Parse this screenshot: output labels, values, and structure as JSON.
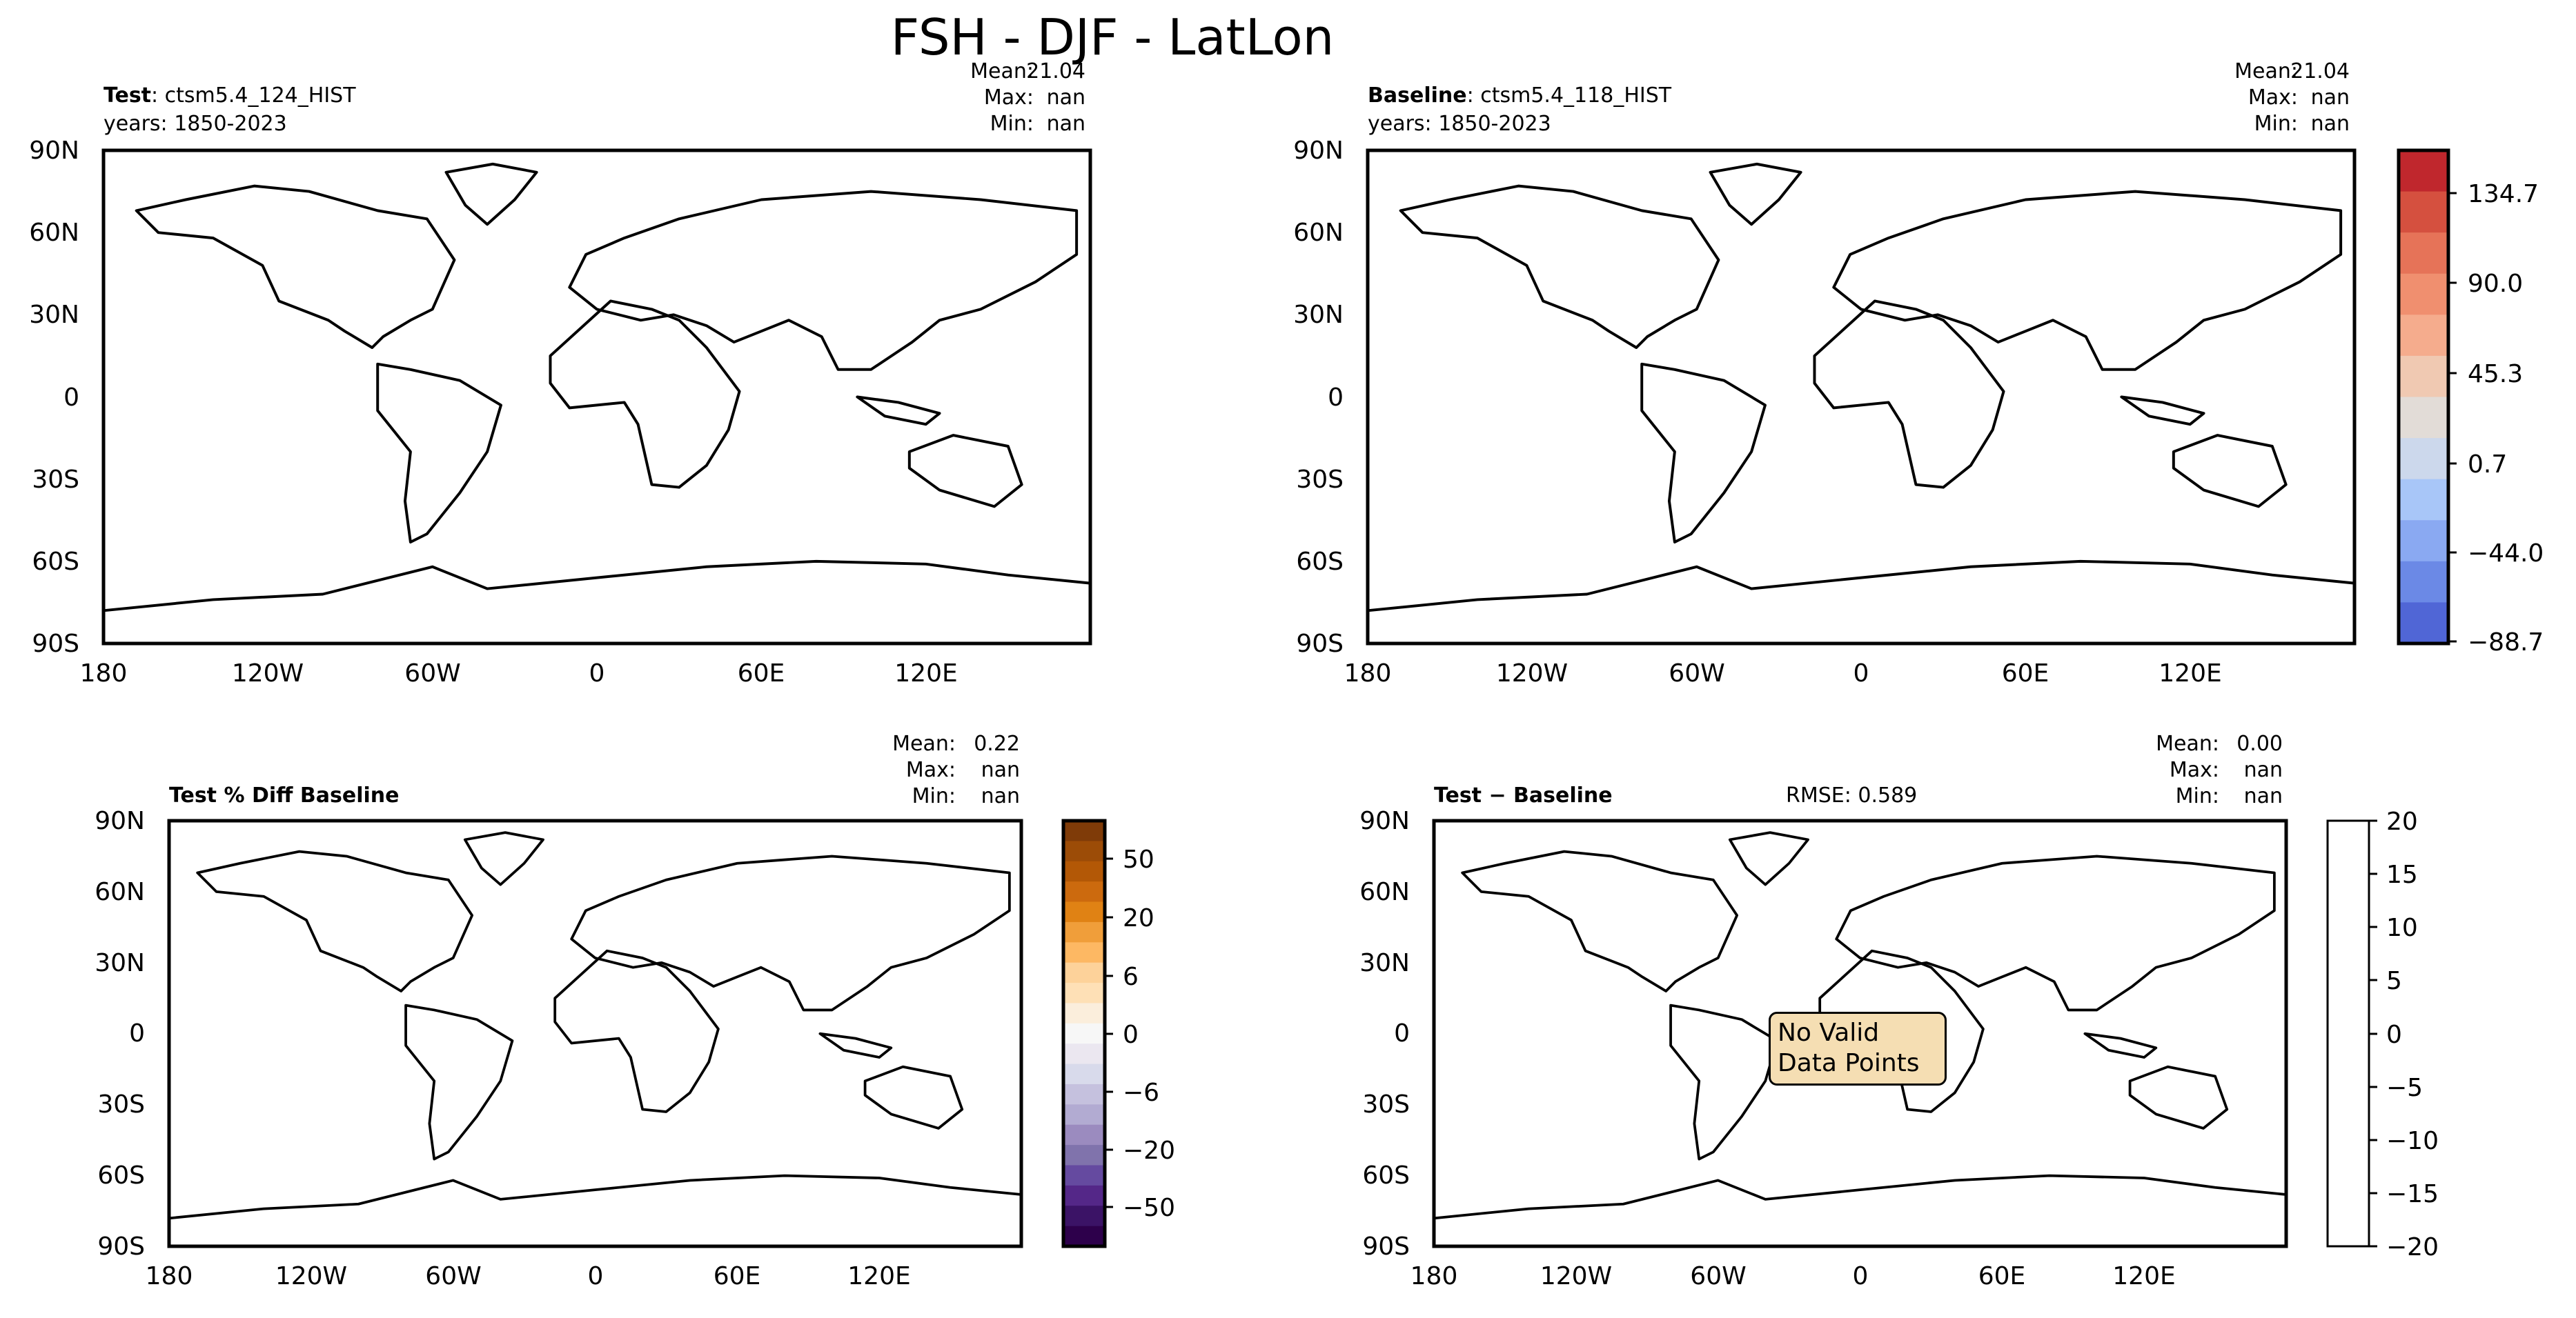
{
  "figure": {
    "title": "FSH - DJF - LatLon"
  },
  "lat_ticks": [
    "90N",
    "60N",
    "30N",
    "0",
    "30S",
    "60S",
    "90S"
  ],
  "lon_ticks": [
    "180",
    "120W",
    "60W",
    "0",
    "60E",
    "120E"
  ],
  "panels": {
    "test": {
      "title_bold": "Test",
      "title_rest": ": ctsm5.4_124_HIST",
      "years": "years: 1850-2023",
      "stats": {
        "mean_label": "Mean:",
        "mean": "21.04",
        "max_label": "Max:",
        "max": "nan",
        "min_label": "Min:",
        "min": "nan"
      }
    },
    "baseline": {
      "title_bold": "Baseline",
      "title_rest": ": ctsm5.4_118_HIST",
      "years": "years: 1850-2023",
      "stats": {
        "mean_label": "Mean:",
        "mean": "21.04",
        "max_label": "Max:",
        "max": "nan",
        "min_label": "Min:",
        "min": "nan"
      }
    },
    "pct_diff": {
      "title": "Test % Diff Baseline",
      "stats": {
        "mean_label": "Mean:",
        "mean": "0.22",
        "max_label": "Max:",
        "max": "nan",
        "min_label": "Min:",
        "min": "nan"
      }
    },
    "diff": {
      "title": "Test − Baseline",
      "rmse": "RMSE: 0.589",
      "no_data_line1": "No Valid",
      "no_data_line2": "Data Points",
      "stats": {
        "mean_label": "Mean:",
        "mean": "0.00",
        "max_label": "Max:",
        "max": "nan",
        "min_label": "Min:",
        "min": "nan"
      }
    }
  },
  "colorbars": {
    "main": {
      "labels": [
        "134.7",
        "90.0",
        "45.3",
        "0.7",
        "−44.0",
        "−88.7"
      ],
      "colors": [
        "#c0272d",
        "#d5503f",
        "#e67358",
        "#f08f6f",
        "#f5ac8d",
        "#f0c9b2",
        "#e2dcd7",
        "#ccd8ec",
        "#a8c6f8",
        "#8aa9f2",
        "#6b89e6",
        "#5066d6"
      ]
    },
    "pct": {
      "labels": [
        "50",
        "20",
        "6",
        "0",
        "−6",
        "−20",
        "−50"
      ],
      "colors": [
        "#7f3b08",
        "#9c4c07",
        "#b35806",
        "#cc6a0e",
        "#e08214",
        "#f09e3a",
        "#fdb863",
        "#fdd29a",
        "#fee0b6",
        "#fbeedc",
        "#f7f7f7",
        "#ebe7f0",
        "#d8daeb",
        "#c5c1de",
        "#b2abd2",
        "#9b8bbf",
        "#8073ac",
        "#654aa0",
        "#542788",
        "#3b1366",
        "#2d004b"
      ]
    },
    "diff": {
      "labels": [
        "20",
        "15",
        "10",
        "5",
        "0",
        "−5",
        "−10",
        "−15",
        "−20"
      ]
    }
  },
  "chart_data": [
    {
      "type": "heatmap",
      "title": "Test: ctsm5.4_124_HIST",
      "subtitle": "years: 1850-2023",
      "x_ticks": [
        "180",
        "120W",
        "60W",
        "0",
        "60E",
        "120E"
      ],
      "y_ticks": [
        "90N",
        "60N",
        "30N",
        "0",
        "30S",
        "60S",
        "90S"
      ],
      "mean": 21.04,
      "max": "nan",
      "min": "nan",
      "colorbar": {
        "range": [
          -88.7,
          134.7
        ],
        "ticks": [
          -88.7,
          -44.0,
          0.7,
          45.3,
          90.0,
          134.7
        ],
        "colormap": "coolwarm"
      }
    },
    {
      "type": "heatmap",
      "title": "Baseline: ctsm5.4_118_HIST",
      "subtitle": "years: 1850-2023",
      "x_ticks": [
        "180",
        "120W",
        "60W",
        "0",
        "60E",
        "120E"
      ],
      "y_ticks": [
        "90N",
        "60N",
        "30N",
        "0",
        "30S",
        "60S",
        "90S"
      ],
      "mean": 21.04,
      "max": "nan",
      "min": "nan",
      "colorbar": {
        "range": [
          -88.7,
          134.7
        ],
        "ticks": [
          -88.7,
          -44.0,
          0.7,
          45.3,
          90.0,
          134.7
        ],
        "colormap": "coolwarm"
      }
    },
    {
      "type": "heatmap",
      "title": "Test % Diff Baseline",
      "x_ticks": [
        "180",
        "120W",
        "60W",
        "0",
        "60E",
        "120E"
      ],
      "y_ticks": [
        "90N",
        "60N",
        "30N",
        "0",
        "30S",
        "60S",
        "90S"
      ],
      "mean": 0.22,
      "max": "nan",
      "min": "nan",
      "colorbar": {
        "ticks": [
          -50,
          -20,
          -6,
          0,
          6,
          20,
          50
        ],
        "colormap": "PuOr"
      }
    },
    {
      "type": "heatmap",
      "title": "Test − Baseline",
      "rmse": 0.589,
      "x_ticks": [
        "180",
        "120W",
        "60W",
        "0",
        "60E",
        "120E"
      ],
      "y_ticks": [
        "90N",
        "60N",
        "30N",
        "0",
        "30S",
        "60S",
        "90S"
      ],
      "mean": 0.0,
      "max": "nan",
      "min": "nan",
      "annotation": "No Valid Data Points",
      "colorbar": {
        "range": [
          -20,
          20
        ],
        "ticks": [
          -20,
          -15,
          -10,
          -5,
          0,
          5,
          10,
          15,
          20
        ]
      }
    }
  ]
}
